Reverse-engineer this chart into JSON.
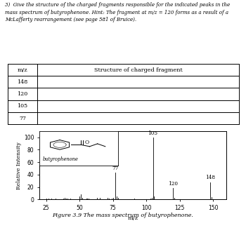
{
  "title_text": "3)  Give the structure of the charged fragments responsible for the indicated peaks in the\nmass spectrum of butyrophenone. Hint: The fragment at m/z = 120 forms as a result of a\nMcLafferty rearrangement (see page 581 of Bruice).",
  "table_mz": [
    "148",
    "120",
    "105",
    "77"
  ],
  "table_col1_header": "m/z",
  "table_col2_header": "Structure of charged fragment",
  "spectrum_peaks": [
    {
      "mz": 25,
      "intensity": 1
    },
    {
      "mz": 27,
      "intensity": 2
    },
    {
      "mz": 29,
      "intensity": 1.5
    },
    {
      "mz": 32,
      "intensity": 1
    },
    {
      "mz": 38,
      "intensity": 2
    },
    {
      "mz": 39,
      "intensity": 3
    },
    {
      "mz": 40,
      "intensity": 1.5
    },
    {
      "mz": 41,
      "intensity": 2
    },
    {
      "mz": 43,
      "intensity": 1.5
    },
    {
      "mz": 50,
      "intensity": 5
    },
    {
      "mz": 51,
      "intensity": 8
    },
    {
      "mz": 52,
      "intensity": 3
    },
    {
      "mz": 55,
      "intensity": 2
    },
    {
      "mz": 56,
      "intensity": 2
    },
    {
      "mz": 57,
      "intensity": 1.5
    },
    {
      "mz": 63,
      "intensity": 3
    },
    {
      "mz": 65,
      "intensity": 3
    },
    {
      "mz": 71,
      "intensity": 3
    },
    {
      "mz": 72,
      "intensity": 2
    },
    {
      "mz": 74,
      "intensity": 2
    },
    {
      "mz": 75,
      "intensity": 3
    },
    {
      "mz": 77,
      "intensity": 43
    },
    {
      "mz": 78,
      "intensity": 5
    },
    {
      "mz": 79,
      "intensity": 3
    },
    {
      "mz": 91,
      "intensity": 2
    },
    {
      "mz": 103,
      "intensity": 2
    },
    {
      "mz": 104,
      "intensity": 3
    },
    {
      "mz": 105,
      "intensity": 100
    },
    {
      "mz": 106,
      "intensity": 5
    },
    {
      "mz": 120,
      "intensity": 18
    },
    {
      "mz": 121,
      "intensity": 3
    },
    {
      "mz": 148,
      "intensity": 28
    },
    {
      "mz": 149,
      "intensity": 4
    }
  ],
  "xlabel": "m/z",
  "ylabel": "Relative Intensity",
  "ylabel_ticks": [
    0,
    20,
    40,
    60,
    80,
    100
  ],
  "xmin": 20,
  "xmax": 160,
  "ymin": 0,
  "ymax": 110,
  "peak_labels": [
    {
      "mz": 105,
      "intensity": 100,
      "label": "105"
    },
    {
      "mz": 77,
      "intensity": 43,
      "label": "77"
    },
    {
      "mz": 148,
      "intensity": 28,
      "label": "148"
    },
    {
      "mz": 120,
      "intensity": 18,
      "label": "120"
    }
  ],
  "xticks": [
    25,
    50,
    75,
    100,
    125,
    150
  ],
  "figure_caption": "Figure 3.9 The mass spectrum of butyrophenone.",
  "inset_label": "butyrophenone",
  "background_color": "#ffffff",
  "spectrum_color": "#000000"
}
